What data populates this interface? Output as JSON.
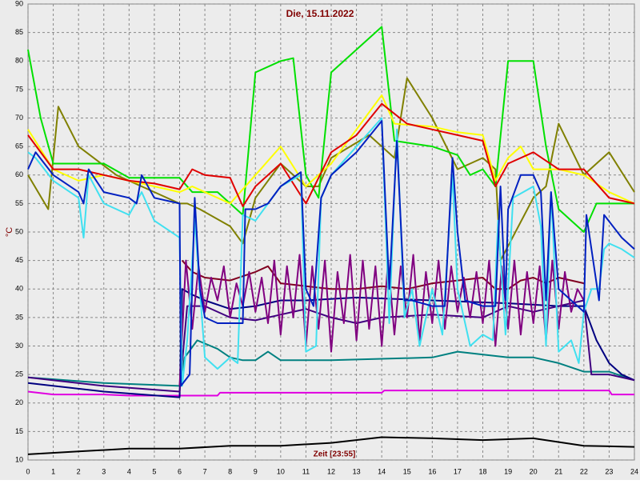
{
  "chart_data": {
    "type": "line",
    "title": "Die, 15.11.2022",
    "y_label": "°C",
    "x_label": "Zeit [23:55]",
    "xlim": [
      0,
      24
    ],
    "xticks": [
      0,
      1,
      2,
      3,
      4,
      5,
      6,
      7,
      8,
      9,
      10,
      11,
      12,
      13,
      14,
      15,
      16,
      17,
      18,
      19,
      20,
      21,
      22,
      23,
      24
    ],
    "ylim": [
      10,
      90
    ],
    "yticks": [
      10,
      15,
      20,
      25,
      30,
      35,
      40,
      45,
      50,
      55,
      60,
      65,
      70,
      75,
      80,
      85,
      90
    ],
    "grid": true,
    "series": [
      {
        "color": "#000000",
        "x": [
          0,
          2,
          4,
          6,
          8,
          10,
          12,
          14,
          16,
          18,
          20,
          22,
          24
        ],
        "values": [
          11,
          11.5,
          12,
          12,
          12.5,
          12.5,
          13,
          14,
          13.8,
          13.5,
          13.8,
          12.5,
          12.3
        ]
      },
      {
        "color": "#e000e0",
        "x": [
          0,
          1,
          3,
          4,
          6,
          7.5,
          7.6,
          14,
          14.1,
          23,
          23.1,
          24
        ],
        "values": [
          22,
          21.5,
          21.5,
          21.3,
          21.3,
          21.3,
          21.8,
          21.8,
          22.2,
          22.2,
          21.5,
          21.5
        ]
      },
      {
        "color": "#008080",
        "x": [
          0,
          3,
          6,
          6.2,
          6.7,
          7.5,
          8,
          8.5,
          9,
          9.5,
          10,
          12,
          16,
          17,
          19,
          20,
          21,
          22,
          23,
          24
        ],
        "values": [
          24.5,
          23.5,
          23,
          28,
          31,
          29.5,
          28,
          27.5,
          27.5,
          29,
          27.5,
          27.5,
          28,
          29,
          28,
          28,
          27,
          25.5,
          25.5,
          24
        ]
      },
      {
        "color": "#000080",
        "x": [
          0,
          3,
          6,
          6.1,
          6.5,
          7,
          8,
          9,
          10,
          11,
          13,
          16,
          19,
          21,
          22,
          22.5,
          23,
          23.5,
          24
        ],
        "values": [
          23.5,
          22,
          21,
          40,
          39,
          38,
          36.5,
          37,
          38,
          38,
          38.5,
          38,
          37.5,
          37,
          37,
          31,
          27,
          25,
          24
        ]
      },
      {
        "color": "#400080",
        "x": [
          0,
          3,
          6,
          6.3,
          7,
          8,
          9,
          10,
          11,
          12,
          13,
          14,
          16,
          18,
          19,
          20,
          21,
          22,
          22.3,
          23,
          24
        ],
        "values": [
          24.5,
          23,
          22,
          37,
          37,
          35,
          34.5,
          35.5,
          36.5,
          35,
          34,
          35,
          35.5,
          35,
          37,
          36,
          37,
          38,
          25,
          25,
          24
        ]
      },
      {
        "color": "#800020",
        "x": [
          6.1,
          6.5,
          7,
          8,
          9,
          9.5,
          10,
          11,
          12,
          13,
          14,
          15,
          16,
          17,
          18,
          18.5,
          19,
          19.5,
          20,
          20.5,
          21,
          22
        ],
        "values": [
          45,
          43,
          42,
          41.5,
          43,
          44,
          41,
          40.5,
          40,
          40,
          40.5,
          40,
          41,
          41.5,
          42,
          40,
          40,
          41.5,
          42,
          41,
          42,
          41
        ]
      },
      {
        "color": "#800080",
        "x": [
          6,
          6.25,
          6.5,
          6.75,
          7,
          7.25,
          7.5,
          7.75,
          8,
          8.25,
          8.5,
          8.75,
          9,
          9.25,
          9.5,
          9.75,
          10,
          10.25,
          10.5,
          10.75,
          11,
          11.25,
          11.5,
          11.75,
          12,
          12.25,
          12.5,
          12.75,
          13,
          13.25,
          13.5,
          13.75,
          14,
          14.25,
          14.5,
          14.75,
          15,
          15.25,
          15.5,
          15.75,
          16,
          16.25,
          16.5,
          16.75,
          17,
          17.25,
          17.5,
          17.75,
          18,
          18.25,
          18.5,
          18.75,
          19,
          19.25,
          19.5,
          19.75,
          20,
          20.25,
          20.5,
          20.75,
          21,
          21.25,
          21.5,
          21.75,
          22
        ],
        "values": [
          23,
          45,
          33,
          44,
          36,
          42,
          38,
          44,
          35,
          41,
          37,
          43,
          36,
          42,
          34,
          45,
          32,
          44,
          35,
          46,
          30,
          44,
          33,
          45,
          29,
          43,
          34,
          46,
          31,
          45,
          33,
          44,
          30,
          45,
          32,
          44,
          35,
          46,
          31,
          43,
          34,
          45,
          33,
          44,
          36,
          42,
          35,
          43,
          34,
          45,
          30,
          44,
          33,
          45,
          32,
          43,
          34,
          44,
          31,
          45,
          33,
          43,
          36,
          40,
          38
        ]
      },
      {
        "color": "#808000",
        "x": [
          0,
          0.8,
          1.2,
          2,
          3.5,
          5,
          6,
          6.3,
          6.8,
          8,
          8.5,
          9,
          10,
          11,
          11.5,
          12,
          13.5,
          14.5,
          15,
          16,
          17,
          18,
          18.5,
          18.7,
          20,
          20.5,
          21,
          22,
          23,
          24
        ],
        "values": [
          60,
          54,
          72,
          65,
          60,
          57,
          55,
          55,
          54,
          51,
          48,
          56,
          62,
          58,
          58,
          63,
          67,
          63,
          77,
          70,
          61,
          63,
          61,
          45,
          56,
          58,
          69,
          60,
          64,
          57
        ]
      },
      {
        "color": "#00e000",
        "x": [
          0,
          0.5,
          1,
          3,
          4,
          6,
          6.5,
          7.5,
          8.5,
          9,
          10,
          10.5,
          11,
          11.5,
          12,
          14,
          14.5,
          16,
          17,
          17.5,
          18,
          18.5,
          19,
          20,
          20.5,
          21,
          21.5,
          22,
          22.5,
          24
        ],
        "values": [
          82,
          70,
          62,
          62,
          59.5,
          59.5,
          57,
          57,
          53,
          78,
          80,
          80.5,
          60,
          56,
          78,
          86,
          66,
          65,
          63.5,
          60,
          61,
          58,
          80,
          80,
          65,
          54,
          52,
          50,
          55,
          55
        ]
      },
      {
        "color": "#ffff00",
        "x": [
          0,
          1,
          2,
          3,
          4,
          5,
          6,
          6.5,
          8,
          9,
          10,
          11,
          12,
          13,
          14,
          14.5,
          16,
          16.5,
          17,
          18,
          18.5,
          19,
          19.5,
          20,
          21,
          22,
          23,
          24
        ],
        "values": [
          68,
          61,
          59,
          60,
          59,
          58,
          57,
          58,
          55,
          60,
          65,
          58,
          62,
          68,
          74,
          69,
          68.5,
          68,
          67.5,
          67,
          59,
          63,
          65,
          61,
          61,
          60,
          57,
          55
        ]
      },
      {
        "color": "#e00000",
        "x": [
          0,
          1,
          2,
          3,
          4,
          5,
          6,
          6.5,
          7,
          8,
          8.5,
          9,
          10,
          11,
          12,
          13,
          14,
          15,
          16,
          17,
          18,
          18.5,
          19,
          20,
          21,
          22,
          23,
          24
        ],
        "values": [
          67,
          61,
          61,
          60,
          59,
          58.5,
          57.5,
          61,
          60,
          59.5,
          54.5,
          58,
          62,
          55,
          64,
          67,
          72.5,
          69,
          68,
          67,
          66,
          58,
          62,
          64,
          61,
          61,
          56,
          55
        ]
      },
      {
        "color": "#40e0f0",
        "x": [
          0,
          0.3,
          1,
          2,
          2.2,
          2.4,
          3,
          4,
          4.5,
          5,
          6,
          6.1,
          6.3,
          6.6,
          7,
          7.5,
          8,
          8.3,
          8.5,
          9,
          10,
          10.8,
          11,
          11.4,
          11.6,
          12,
          13,
          14,
          14.3,
          14.6,
          14.9,
          15.2,
          15.5,
          16,
          16.4,
          16.8,
          17,
          17.5,
          18,
          18.4,
          18.6,
          18.9,
          19.2,
          20,
          20.3,
          20.5,
          20.7,
          21,
          21.5,
          21.8,
          22,
          22.3,
          22.6,
          22.8,
          23,
          23.5,
          24
        ],
        "values": [
          64,
          63,
          59,
          56,
          49,
          60,
          55,
          53,
          57,
          52,
          49,
          23,
          31,
          52,
          28,
          26,
          28,
          27,
          53,
          52,
          58,
          60,
          29,
          30,
          56,
          60,
          65,
          70,
          34,
          68,
          35,
          40,
          30,
          40,
          32,
          60,
          40,
          30,
          32,
          31,
          52,
          32,
          56,
          58,
          51,
          30,
          57,
          29,
          31,
          27,
          36,
          40,
          40,
          47,
          48,
          47,
          45.5
        ]
      },
      {
        "color": "#0020c0",
        "x": [
          0,
          0.3,
          1,
          2,
          2.2,
          2.4,
          3,
          4,
          4.3,
          4.5,
          5,
          6,
          6.05,
          6.4,
          6.6,
          6.8,
          7,
          7.5,
          8,
          8.5,
          8.6,
          9,
          9.5,
          10,
          10.8,
          11,
          11.3,
          11.6,
          12,
          13,
          14,
          14.3,
          14.6,
          14.9,
          15.2,
          16,
          16.5,
          16.8,
          17,
          17.3,
          18,
          18.5,
          18.7,
          18.9,
          19,
          19.5,
          20,
          20.3,
          20.5,
          20.7,
          21,
          21.5,
          22,
          22.1,
          22.6,
          22.8,
          23.5,
          24
        ],
        "values": [
          61,
          64,
          60,
          57,
          55,
          61,
          57,
          56,
          55,
          60,
          56,
          55,
          23,
          25,
          56,
          40,
          35,
          34,
          34,
          34,
          54,
          54,
          55,
          58,
          60.5,
          40,
          37,
          56,
          60,
          64,
          69.5,
          40,
          66,
          38,
          38,
          37,
          37,
          63,
          50,
          38,
          37,
          37,
          58,
          38,
          54,
          60,
          60,
          57,
          38,
          57,
          40,
          38,
          36,
          53,
          38,
          53,
          49,
          47
        ]
      }
    ]
  }
}
